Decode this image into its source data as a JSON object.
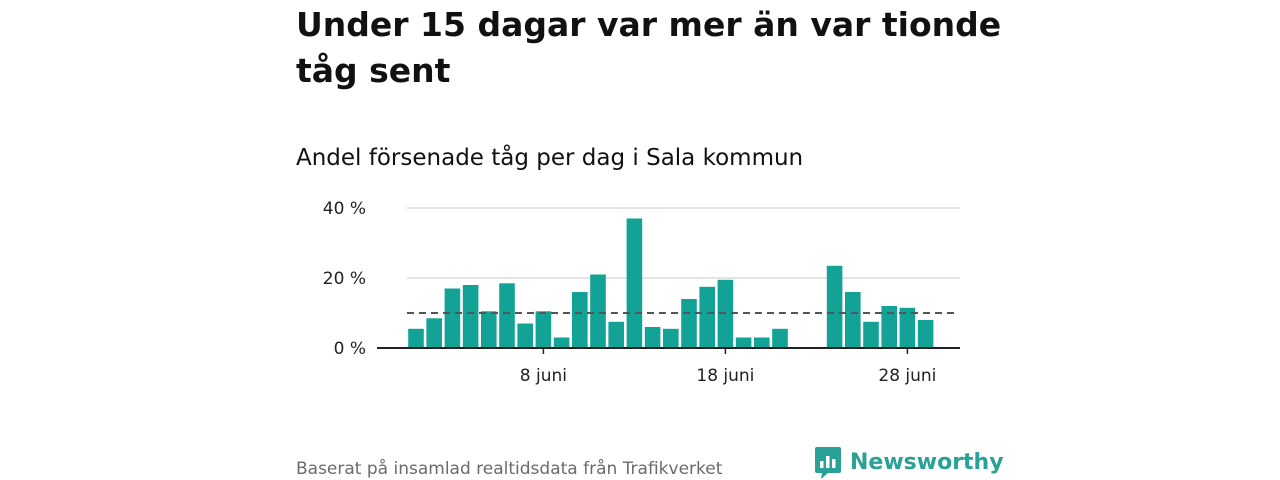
{
  "header": {
    "title": "Under 15 dagar var mer än var tionde tåg sent",
    "subtitle": "Andel försenade tåg per dag i Sala kommun"
  },
  "footer": {
    "source": "Baserat på insamlad realtidsdata från Trafikverket",
    "brand": "Newsworthy"
  },
  "colors": {
    "bar": "#12a396",
    "reference_line": "#555555",
    "grid": "#dcdcdc",
    "axis": "#222222",
    "brand": "#2aa197"
  },
  "icons": {
    "brand_logo": "newsworthy-logo-icon"
  },
  "chart_data": {
    "type": "bar",
    "title": "Andel försenade tåg per dag i Sala kommun",
    "xlabel": "",
    "ylabel": "",
    "x": [
      1,
      2,
      3,
      4,
      5,
      6,
      7,
      8,
      9,
      10,
      11,
      12,
      13,
      14,
      15,
      16,
      17,
      18,
      19,
      20,
      21,
      22,
      23,
      24,
      25,
      26,
      27,
      28,
      29,
      30
    ],
    "values": [
      5.5,
      8.5,
      17,
      18,
      10.5,
      18.5,
      7,
      10.5,
      3,
      16,
      21,
      7.5,
      37,
      6,
      5.5,
      14,
      17.5,
      19.5,
      3,
      3,
      5.5,
      null,
      null,
      23.5,
      16,
      7.5,
      12,
      11.5,
      8,
      null
    ],
    "reference_line": 10,
    "ylim": [
      0,
      40
    ],
    "yticks": [
      0,
      20,
      40
    ],
    "ytick_labels": [
      "0 %",
      "20 %",
      "40 %"
    ],
    "xticks": [
      8,
      18,
      28
    ],
    "xtick_labels": [
      "8 juni",
      "18 juni",
      "28 juni"
    ],
    "grid": true,
    "legend": "none"
  }
}
